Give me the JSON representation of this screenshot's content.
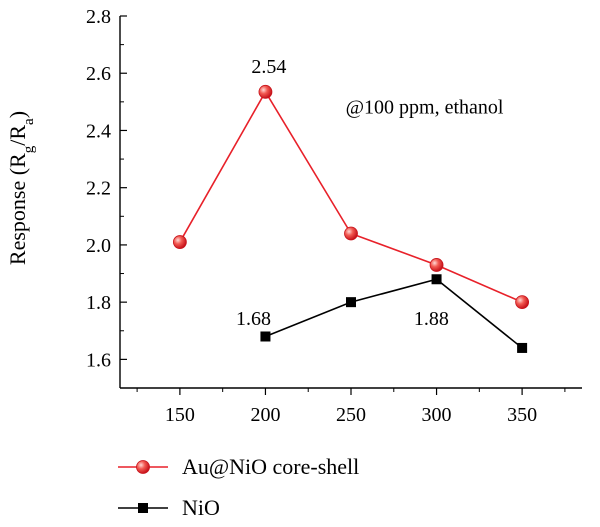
{
  "colors": {
    "au_series": "#e8212a",
    "nio_series": "#000000",
    "marker_highlight": "#ffd9d6"
  },
  "chart_data": {
    "type": "line",
    "title": "",
    "xlabel": "",
    "ylabel": {
      "prefix": "Response (R",
      "sub1": "g",
      "mid": "/R",
      "sub2": "a",
      "suffix": ")"
    },
    "xlim": [
      115,
      385
    ],
    "ylim": [
      1.5,
      2.8
    ],
    "xticks": [
      150,
      200,
      250,
      300,
      350
    ],
    "yticks": [
      1.6,
      1.8,
      2.0,
      2.2,
      2.4,
      2.6,
      2.8
    ],
    "xtick_labels": [
      "150",
      "200",
      "250",
      "300",
      "350"
    ],
    "ytick_labels": [
      "1.6",
      "1.8",
      "2.0",
      "2.2",
      "2.4",
      "2.6",
      "2.8"
    ],
    "grid": false,
    "legend_placement": "bottom",
    "series": [
      {
        "name": "Au@NiO core-shell",
        "marker": "circle",
        "x": [
          150,
          200,
          250,
          300,
          350
        ],
        "y": [
          2.01,
          2.535,
          2.04,
          1.93,
          1.8
        ]
      },
      {
        "name": "NiO",
        "marker": "square",
        "x": [
          200,
          250,
          300,
          350
        ],
        "y": [
          1.68,
          1.8,
          1.88,
          1.64
        ]
      }
    ],
    "annotations": [
      {
        "text": "@100 ppm, ethanol",
        "x": 293,
        "y": 2.46,
        "anchor": "middle"
      },
      {
        "text": "2.54",
        "x": 202,
        "y": 2.6,
        "anchor": "middle"
      },
      {
        "text": "1.68",
        "x": 193,
        "y": 1.72,
        "anchor": "middle"
      },
      {
        "text": "1.88",
        "x": 297,
        "y": 1.72,
        "anchor": "middle"
      }
    ]
  }
}
